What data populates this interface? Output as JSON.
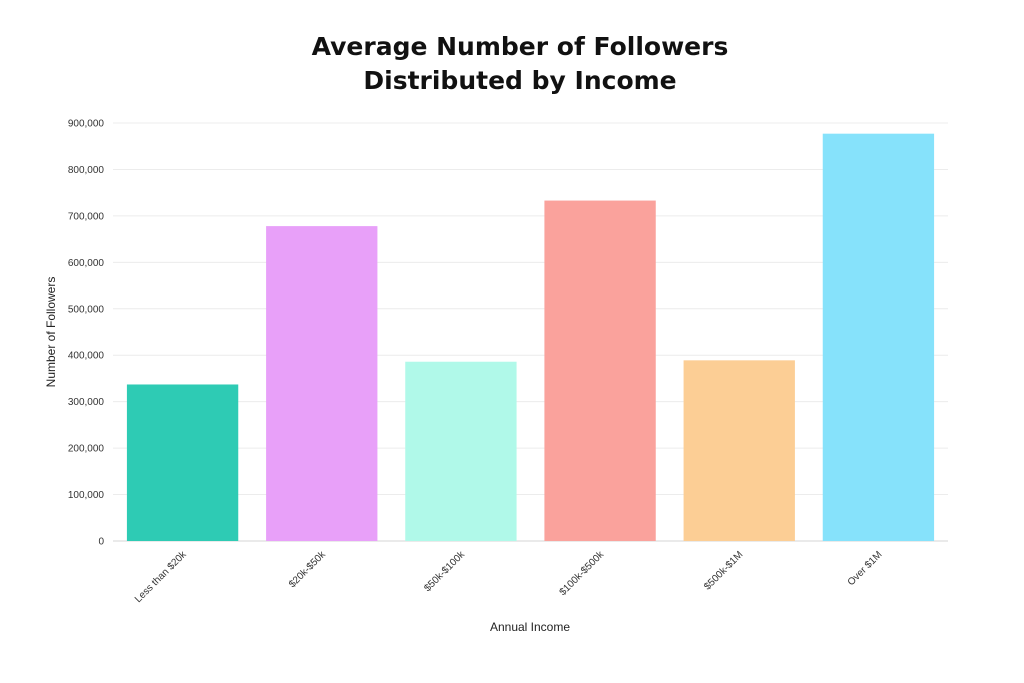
{
  "chart_data": {
    "type": "bar",
    "title_lines": [
      "Average Number of Followers",
      "Distributed by Income"
    ],
    "xlabel": "Annual Income",
    "ylabel": "Number of Followers",
    "categories": [
      "Less than $20k",
      "$20k-$50k",
      "$50k-$100k",
      "$100k-$500k",
      "$500k-$1M",
      "Over $1M"
    ],
    "values": [
      337000,
      678000,
      386000,
      733000,
      389000,
      877000
    ],
    "ylim": [
      0,
      900000
    ],
    "yticks": [
      0,
      100000,
      200000,
      300000,
      400000,
      500000,
      600000,
      700000,
      800000,
      900000
    ],
    "ytick_labels": [
      "0",
      "100,000",
      "200,000",
      "300,000",
      "400,000",
      "500,000",
      "600,000",
      "700,000",
      "800,000",
      "900,000"
    ],
    "colors": [
      "#2ecbb4",
      "#e8a0f9",
      "#b0f9e9",
      "#faa29c",
      "#fcce95",
      "#86e2fb"
    ],
    "grid": true,
    "legend": "none"
  }
}
